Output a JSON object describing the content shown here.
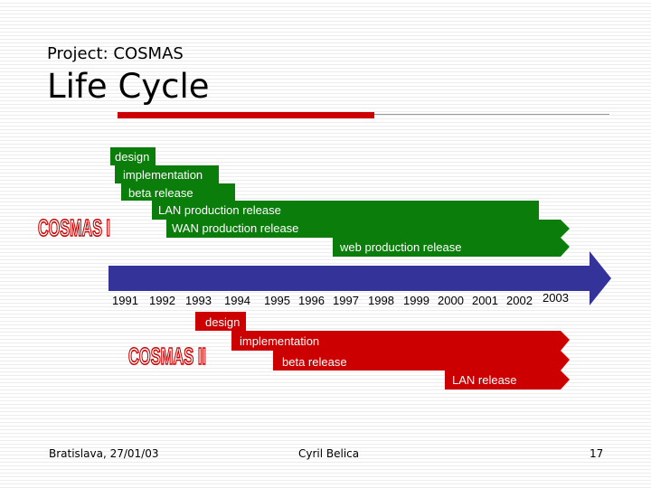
{
  "header": {
    "subtitle": "Project: COSMAS",
    "title": "Life Cycle"
  },
  "cosmas1": {
    "logo_text": "COSMAS I",
    "phases": [
      "design",
      "implementation",
      "beta release",
      "LAN production release",
      "WAN production release",
      "web production release"
    ]
  },
  "cosmas2": {
    "logo_text": "COSMAS II",
    "phases": [
      "design",
      "implementation",
      "beta release",
      "LAN release"
    ]
  },
  "timeline": {
    "years": [
      "1991",
      "1992",
      "1993",
      "1994",
      "1995",
      "1996",
      "1997",
      "1998",
      "1999",
      "2000",
      "2001",
      "2002",
      "2003"
    ]
  },
  "footer": {
    "left": "Bratislava, 27/01/03",
    "center": "Cyril Belica",
    "page": "17"
  },
  "colors": {
    "green": "#0a7d0a",
    "red": "#cc0000",
    "blue": "#333399",
    "logo_red": "#cc0000"
  }
}
